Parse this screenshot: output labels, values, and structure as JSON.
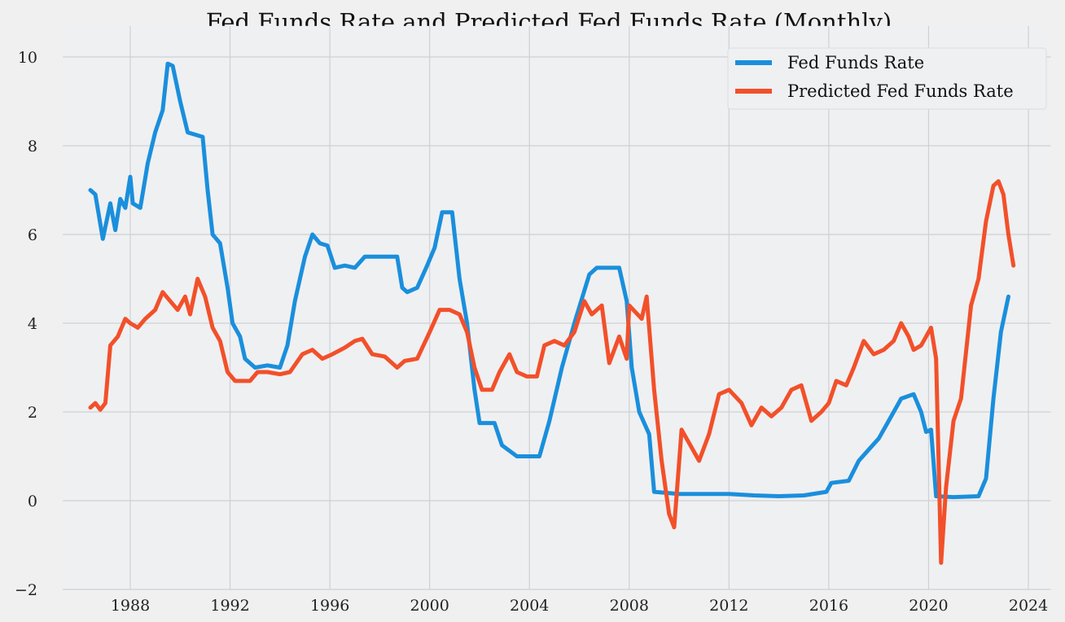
{
  "chart_data": {
    "type": "line",
    "title": "Fed Funds Rate and Predicted Fed Funds Rate (Monthly)",
    "xlabel": "",
    "ylabel": "",
    "xlim": [
      1985.3,
      2024.9
    ],
    "ylim": [
      -2,
      10.7
    ],
    "xticks": [
      "1988",
      "1992",
      "1996",
      "2000",
      "2004",
      "2008",
      "2012",
      "2016",
      "2020",
      "2024"
    ],
    "yticks": [
      "−2",
      "0",
      "2",
      "4",
      "6",
      "8",
      "10"
    ],
    "grid": true,
    "legend": "top-right",
    "colors": {
      "background": "#eff0f2",
      "grid": "#cfd0d4",
      "fed": "#1a8fdc",
      "pred": "#f2502a"
    },
    "series": [
      {
        "name": "Fed Funds Rate",
        "color": "#1a8fdc",
        "x": [
          1986.4,
          1986.6,
          1986.9,
          1987.2,
          1987.4,
          1987.6,
          1987.8,
          1988.0,
          1988.1,
          1988.4,
          1988.7,
          1989.0,
          1989.3,
          1989.5,
          1989.7,
          1990.0,
          1990.3,
          1990.6,
          1990.9,
          1991.1,
          1991.3,
          1991.6,
          1991.9,
          1992.1,
          1992.4,
          1992.6,
          1993.0,
          1993.5,
          1994.0,
          1994.3,
          1994.6,
          1995.0,
          1995.3,
          1995.6,
          1995.9,
          1996.2,
          1996.6,
          1997.0,
          1997.4,
          1997.8,
          1998.2,
          1998.7,
          1998.9,
          1999.1,
          1999.5,
          1999.9,
          2000.2,
          2000.5,
          2000.9,
          2001.2,
          2001.5,
          2001.8,
          2002.0,
          2002.6,
          2002.9,
          2003.5,
          2004.4,
          2004.8,
          2005.3,
          2005.8,
          2006.4,
          2006.7,
          2007.6,
          2007.9,
          2008.1,
          2008.4,
          2008.8,
          2009.0,
          2010.0,
          2011.0,
          2012.0,
          2013.0,
          2014.0,
          2015.0,
          2015.9,
          2016.1,
          2016.8,
          2017.2,
          2017.6,
          2018.0,
          2018.4,
          2018.9,
          2019.4,
          2019.7,
          2019.9,
          2020.1,
          2020.3,
          2021.0,
          2022.0,
          2022.3,
          2022.6,
          2022.9,
          2023.2
        ],
        "values": [
          7.0,
          6.9,
          5.9,
          6.7,
          6.1,
          6.8,
          6.6,
          7.3,
          6.7,
          6.6,
          7.6,
          8.3,
          8.8,
          9.85,
          9.8,
          9.0,
          8.3,
          8.25,
          8.2,
          7.0,
          6.0,
          5.8,
          4.8,
          4.0,
          3.7,
          3.2,
          3.0,
          3.05,
          3.0,
          3.5,
          4.5,
          5.5,
          6.0,
          5.8,
          5.75,
          5.25,
          5.3,
          5.25,
          5.5,
          5.5,
          5.5,
          5.5,
          4.8,
          4.7,
          4.8,
          5.3,
          5.7,
          6.5,
          6.5,
          5.0,
          4.0,
          2.5,
          1.75,
          1.75,
          1.25,
          1.0,
          1.0,
          1.8,
          3.0,
          4.0,
          5.1,
          5.25,
          5.25,
          4.5,
          3.0,
          2.0,
          1.5,
          0.2,
          0.15,
          0.15,
          0.15,
          0.12,
          0.1,
          0.12,
          0.2,
          0.4,
          0.45,
          0.9,
          1.15,
          1.4,
          1.8,
          2.3,
          2.4,
          2.0,
          1.55,
          1.6,
          0.1,
          0.08,
          0.1,
          0.5,
          2.3,
          3.8,
          4.6
        ]
      },
      {
        "name": "Predicted Fed Funds Rate",
        "color": "#f2502a",
        "x": [
          1986.4,
          1986.6,
          1986.8,
          1987.0,
          1987.2,
          1987.5,
          1987.8,
          1988.0,
          1988.3,
          1988.6,
          1989.0,
          1989.3,
          1989.6,
          1989.9,
          1990.2,
          1990.4,
          1990.7,
          1991.0,
          1991.3,
          1991.6,
          1991.9,
          1992.2,
          1992.5,
          1992.8,
          1993.1,
          1993.5,
          1994.0,
          1994.4,
          1994.9,
          1995.3,
          1995.7,
          1996.1,
          1996.6,
          1997.0,
          1997.3,
          1997.7,
          1998.2,
          1998.7,
          1999.0,
          1999.5,
          2000.0,
          2000.4,
          2000.8,
          2001.2,
          2001.5,
          2001.8,
          2002.1,
          2002.5,
          2002.8,
          2003.2,
          2003.5,
          2003.9,
          2004.3,
          2004.6,
          2005.0,
          2005.4,
          2005.8,
          2006.2,
          2006.5,
          2006.9,
          2007.2,
          2007.6,
          2007.9,
          2008.0,
          2008.5,
          2008.7,
          2009.0,
          2009.3,
          2009.6,
          2009.8,
          2010.1,
          2010.4,
          2010.8,
          2011.2,
          2011.6,
          2012.0,
          2012.5,
          2012.9,
          2013.3,
          2013.7,
          2014.1,
          2014.5,
          2014.9,
          2015.3,
          2015.7,
          2016.0,
          2016.3,
          2016.7,
          2017.0,
          2017.4,
          2017.8,
          2018.2,
          2018.6,
          2018.9,
          2019.2,
          2019.4,
          2019.7,
          2020.1,
          2020.3,
          2020.5,
          2020.7,
          2021.0,
          2021.3,
          2021.7,
          2022.0,
          2022.3,
          2022.6,
          2022.8,
          2023.0,
          2023.2,
          2023.4
        ],
        "values": [
          2.1,
          2.2,
          2.05,
          2.2,
          3.5,
          3.7,
          4.1,
          4.0,
          3.9,
          4.1,
          4.3,
          4.7,
          4.5,
          4.3,
          4.6,
          4.2,
          5.0,
          4.6,
          3.9,
          3.6,
          2.9,
          2.7,
          2.7,
          2.7,
          2.9,
          2.9,
          2.85,
          2.9,
          3.3,
          3.4,
          3.2,
          3.3,
          3.45,
          3.6,
          3.65,
          3.3,
          3.25,
          3.0,
          3.15,
          3.2,
          3.8,
          4.3,
          4.3,
          4.2,
          3.8,
          3.0,
          2.5,
          2.5,
          2.9,
          3.3,
          2.9,
          2.8,
          2.8,
          3.5,
          3.6,
          3.5,
          3.8,
          4.5,
          4.2,
          4.4,
          3.1,
          3.7,
          3.2,
          4.4,
          4.1,
          4.6,
          2.5,
          0.9,
          -0.3,
          -0.6,
          1.6,
          1.3,
          0.9,
          1.5,
          2.4,
          2.5,
          2.2,
          1.7,
          2.1,
          1.9,
          2.1,
          2.5,
          2.6,
          1.8,
          2.0,
          2.2,
          2.7,
          2.6,
          3.0,
          3.6,
          3.3,
          3.4,
          3.6,
          4.0,
          3.7,
          3.4,
          3.5,
          3.9,
          3.2,
          -1.4,
          0.3,
          1.8,
          2.3,
          4.4,
          5.0,
          6.3,
          7.1,
          7.2,
          6.9,
          6.0,
          5.3
        ]
      }
    ]
  }
}
